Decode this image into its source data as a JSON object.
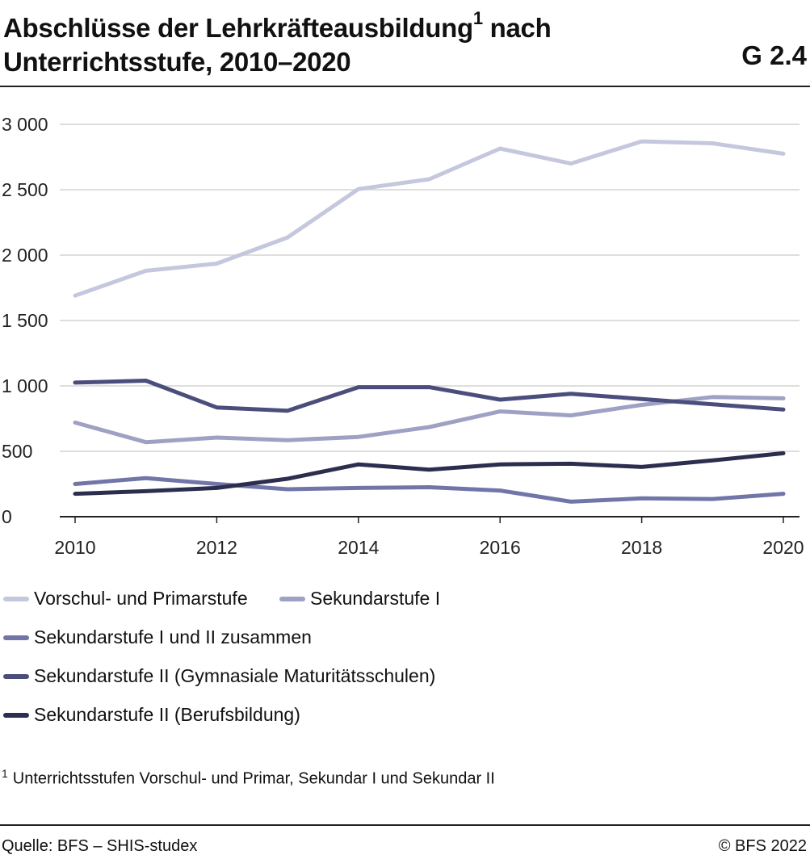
{
  "header": {
    "title_line1": "Abschlüsse der Lehrkräfteausbildung",
    "title_sup": "1",
    "title_line1_end": " nach",
    "title_line2": "Unterrichtsstufe, 2010–2020",
    "graphic_number": "G 2.4"
  },
  "footnote": {
    "marker": "1",
    "text": "Unterrichtsstufen Vorschul- und Primar, Sekundar I und Sekundar II"
  },
  "footer": {
    "source": "Quelle: BFS – SHIS-studex",
    "copyright": "© BFS 2022"
  },
  "chart_data": {
    "type": "line",
    "title": "Abschlüsse der Lehrkräfteausbildung nach Unterrichtsstufe, 2010–2020",
    "xlabel": "",
    "ylabel": "",
    "x": [
      2010,
      2011,
      2012,
      2013,
      2014,
      2015,
      2016,
      2017,
      2018,
      2019,
      2020
    ],
    "x_ticks": [
      "2010",
      "2012",
      "2014",
      "2016",
      "2018",
      "2020"
    ],
    "y_ticks": [
      "0",
      "500",
      "1 000",
      "1 500",
      "2 000",
      "2 500",
      "3 000"
    ],
    "ylim": [
      0,
      3000
    ],
    "grid": true,
    "legend_position": "bottom",
    "series": [
      {
        "name": "Vorschul- und Primarstufe",
        "color": "#c5c7de",
        "values": [
          1690,
          1880,
          1935,
          2135,
          2505,
          2580,
          2815,
          2700,
          2870,
          2855,
          2775
        ]
      },
      {
        "name": "Sekundarstufe I",
        "color": "#9ea1c4",
        "values": [
          720,
          570,
          605,
          585,
          610,
          685,
          805,
          775,
          855,
          915,
          905
        ]
      },
      {
        "name": "Sekundarstufe I und II zusammen",
        "color": "#7275a8",
        "values": [
          250,
          295,
          250,
          210,
          220,
          225,
          200,
          115,
          140,
          135,
          175
        ]
      },
      {
        "name": "Sekundarstufe II (Gymnasiale Maturitätsschulen)",
        "color": "#4b4e7c",
        "values": [
          1025,
          1040,
          835,
          810,
          990,
          990,
          895,
          940,
          900,
          860,
          820
        ]
      },
      {
        "name": "Sekundarstufe II (Berufsbildung)",
        "color": "#2c2e4e",
        "values": [
          175,
          195,
          220,
          290,
          400,
          360,
          400,
          405,
          380,
          430,
          485
        ]
      }
    ]
  }
}
